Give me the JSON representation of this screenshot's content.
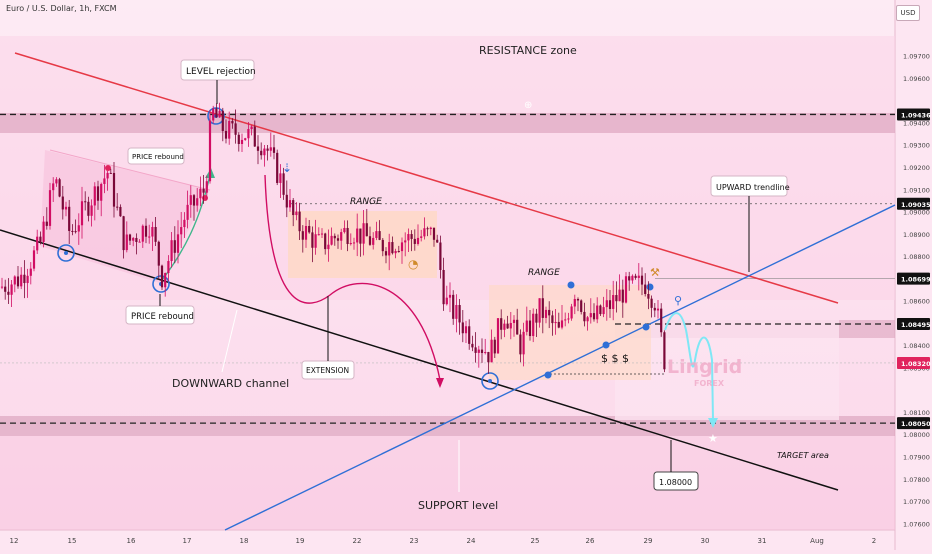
{
  "header": {
    "symbol": "Euro / U.S. Dollar, 1h, FXCM",
    "currency": "USD"
  },
  "chart_data": {
    "type": "candlestick",
    "y_axis": {
      "ylim": [
        1.0757,
        1.0995
      ],
      "ticks": [
        "1.09700",
        "1.09600",
        "1.09400",
        "1.09300",
        "1.09200",
        "1.09100",
        "1.09000",
        "1.08900",
        "1.08800",
        "1.08600",
        "1.08400",
        "1.08300",
        "1.08100",
        "1.08000",
        "1.07900",
        "1.07800",
        "1.07700",
        "1.07600"
      ],
      "tick_values": [
        1.097,
        1.096,
        1.094,
        1.093,
        1.092,
        1.091,
        1.09,
        1.089,
        1.088,
        1.086,
        1.084,
        1.083,
        1.081,
        1.08,
        1.079,
        1.078,
        1.077,
        1.076
      ]
    },
    "x_axis": {
      "labels": [
        "12",
        "15",
        "16",
        "17",
        "18",
        "19",
        "22",
        "23",
        "24",
        "25",
        "26",
        "29",
        "30",
        "31",
        "Aug",
        "2"
      ]
    },
    "price_labels": [
      {
        "text": "1.09436",
        "value": 1.09436,
        "color": "#111111"
      },
      {
        "text": "1.09035",
        "value": 1.09035,
        "color": "#111111"
      },
      {
        "text": "1.08699",
        "value": 1.08699,
        "color": "#111111"
      },
      {
        "text": "1.08495",
        "value": 1.08495,
        "color": "#111111"
      },
      {
        "text": "1.08320",
        "value": 1.0832,
        "color": "#e0245e"
      },
      {
        "text": "1.08050",
        "value": 1.0805,
        "color": "#111111"
      }
    ],
    "annotations": {
      "resistance_zone": "RESISTANCE zone",
      "level_rejection": "LEVEL rejection",
      "price_rebound_small": "PRICE rebound",
      "price_rebound": "PRICE rebound",
      "range_1": "RANGE",
      "range_2": "RANGE",
      "upward_trendline": "UPWARD trendline",
      "extension": "EXTENSION",
      "downward_channel": "DOWNWARD channel",
      "support_level": "SUPPORT level",
      "target_area": "TARGET area",
      "target_value": "1.08000",
      "dollars": "$ $ $",
      "watermark_main": "Lingrid",
      "watermark_sub": "FOREX"
    },
    "colors": {
      "background": "#fde4f1",
      "bull_candle": "#d10d63",
      "bear_candle": "#7a0838",
      "resistance_line": "#e63946",
      "upward_trendline": "#2f6fd6",
      "channel_line": "#111111",
      "forecast": "#7fe7f5",
      "zone": "#d597b4",
      "range_box": "#ffd8bf"
    }
  }
}
